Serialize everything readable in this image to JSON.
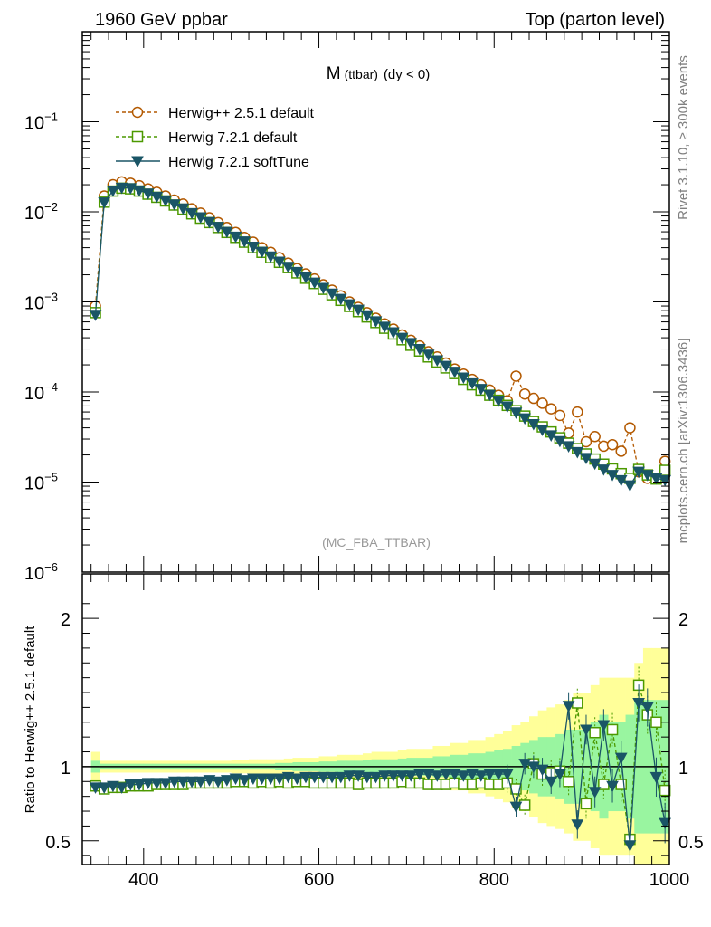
{
  "header": {
    "left": "1960 GeV ppbar",
    "right": "Top (parton level)"
  },
  "side_labels": {
    "rivet": "Rivet 3.1.10, ≥ 300k events",
    "mcplots": "mcplots.cern.ch [arXiv:1306.3436]"
  },
  "chart_data": [
    {
      "type": "line",
      "title": "M",
      "title_sub": "(ttbar)",
      "title_suffix": "(dy < 0)",
      "analysis_label": "(MC_FBA_TTBAR)",
      "xlim": [
        330,
        1000
      ],
      "ylim": [
        1e-06,
        1
      ],
      "log_y": true,
      "y_tick_labels": [
        {
          "base": "10",
          "exp": "−1",
          "value": 0.1
        },
        {
          "base": "10",
          "exp": "−2",
          "value": 0.01
        },
        {
          "base": "10",
          "exp": "−3",
          "value": 0.001
        },
        {
          "base": "10",
          "exp": "−4",
          "value": 0.0001
        },
        {
          "base": "10",
          "exp": "−5",
          "value": 1e-05
        },
        {
          "base": "10",
          "exp": "−6",
          "value": 1e-06
        }
      ],
      "legend_placement": "top-left",
      "series": [
        {
          "name": "Herwig++ 2.5.1 default",
          "color": "#b35900",
          "marker": "open-circle",
          "line": "dashed"
        },
        {
          "name": "Herwig 7.2.1 default",
          "color": "#4c9900",
          "marker": "open-square",
          "line": "dashed"
        },
        {
          "name": "Herwig 7.2.1 softTune",
          "color": "#1a5566",
          "marker": "filled-triangle-down",
          "line": "solid"
        }
      ],
      "x": [
        345,
        355,
        365,
        375,
        385,
        395,
        405,
        415,
        425,
        435,
        445,
        455,
        465,
        475,
        485,
        495,
        505,
        515,
        525,
        535,
        545,
        555,
        565,
        575,
        585,
        595,
        605,
        615,
        625,
        635,
        645,
        655,
        665,
        675,
        685,
        695,
        705,
        715,
        725,
        735,
        745,
        755,
        765,
        775,
        785,
        795,
        805,
        815,
        825,
        835,
        845,
        855,
        865,
        875,
        885,
        895,
        905,
        915,
        925,
        935,
        945,
        955,
        965,
        975,
        985,
        995
      ],
      "values_herwigpp": [
        0.0009,
        0.015,
        0.02,
        0.0215,
        0.0208,
        0.0195,
        0.018,
        0.0165,
        0.015,
        0.0135,
        0.0122,
        0.0108,
        0.0097,
        0.0086,
        0.0076,
        0.0067,
        0.0059,
        0.0052,
        0.0046,
        0.004,
        0.00355,
        0.0031,
        0.0027,
        0.00235,
        0.00205,
        0.0018,
        0.00155,
        0.00135,
        0.00117,
        0.001,
        0.00087,
        0.00076,
        0.00066,
        0.00057,
        0.0005,
        0.00043,
        0.000375,
        0.000325,
        0.00028,
        0.000245,
        0.00021,
        0.00018,
        0.000158,
        0.000138,
        0.00012,
        0.000105,
        9.2e-05,
        8e-05,
        0.00015,
        9.5e-05,
        8.5e-05,
        7.5e-05,
        6.5e-05,
        5.5e-05,
        3.5e-05,
        6e-05,
        2.8e-05,
        3.2e-05,
        2.5e-05,
        2.6e-05,
        2.2e-05,
        4e-05,
        1.3e-05,
        1.1e-05,
        1.1e-05,
        1.7e-05
      ],
      "values_h7default": [
        0.00076,
        0.0128,
        0.017,
        0.0183,
        0.018,
        0.017,
        0.0157,
        0.0145,
        0.0132,
        0.0119,
        0.0107,
        0.0095,
        0.0085,
        0.0076,
        0.0067,
        0.0059,
        0.0052,
        0.0046,
        0.004,
        0.00355,
        0.0031,
        0.00275,
        0.0024,
        0.0021,
        0.00183,
        0.0016,
        0.00138,
        0.0012,
        0.00104,
        0.00089,
        0.00078,
        0.00068,
        0.00059,
        0.00051,
        0.00044,
        0.00038,
        0.00033,
        0.000285,
        0.000245,
        0.000215,
        0.000185,
        0.00016,
        0.000138,
        0.00012,
        0.000105,
        9.2e-05,
        8.1e-05,
        7.1e-05,
        6.2e-05,
        5.4e-05,
        4.7e-05,
        4.1e-05,
        3.6e-05,
        3.1e-05,
        2.7e-05,
        2.35e-05,
        2.05e-05,
        1.8e-05,
        1.58e-05,
        1.4e-05,
        1.24e-05,
        1.1e-05,
        1.38e-05,
        1.2e-05,
        1.08e-05,
        1.35e-05
      ],
      "values_h7soft": [
        0.00072,
        0.0127,
        0.0172,
        0.0185,
        0.0183,
        0.0173,
        0.016,
        0.0147,
        0.0134,
        0.0121,
        0.0109,
        0.0097,
        0.0087,
        0.0077,
        0.0068,
        0.006,
        0.0053,
        0.0047,
        0.0041,
        0.0036,
        0.0032,
        0.0028,
        0.00245,
        0.00215,
        0.00188,
        0.00164,
        0.00143,
        0.00124,
        0.00108,
        0.00094,
        0.00082,
        0.00071,
        0.00061,
        0.00053,
        0.00046,
        0.0004,
        0.00035,
        0.0003,
        0.00026,
        0.000225,
        0.000195,
        0.000168,
        0.000145,
        0.000125,
        0.000108,
        9.3e-05,
        8e-05,
        6.9e-05,
        5.9e-05,
        5.1e-05,
        4.4e-05,
        3.8e-05,
        3.3e-05,
        2.85e-05,
        2.5e-05,
        2.15e-05,
        1.85e-05,
        1.6e-05,
        1.38e-05,
        1.2e-05,
        1.05e-05,
        9.2e-06,
        1.3e-05,
        1.2e-05,
        1.1e-05,
        1.05e-05
      ]
    },
    {
      "type": "line",
      "ylabel": "Ratio to Herwig++ 2.5.1 default",
      "xlim": [
        330,
        1000
      ],
      "ylim": [
        0.34,
        2.3
      ],
      "x_tick_labels": [
        "400",
        "600",
        "800",
        "1000"
      ],
      "x_ticks": [
        400,
        600,
        800,
        1000
      ],
      "y_tick_labels": [
        "2",
        "1",
        "0.5"
      ],
      "y_ticks": [
        2,
        1,
        0.5
      ],
      "reference_line": 1,
      "band_inner_color": "#99f5a0",
      "band_outer_color": "#ffff99",
      "band_halfwidth_inner": [
        0.04,
        0.02,
        0.02,
        0.02,
        0.02,
        0.02,
        0.02,
        0.02,
        0.02,
        0.02,
        0.02,
        0.02,
        0.02,
        0.02,
        0.02,
        0.02,
        0.02,
        0.02,
        0.02,
        0.02,
        0.02,
        0.025,
        0.025,
        0.03,
        0.03,
        0.03,
        0.035,
        0.035,
        0.04,
        0.04,
        0.04,
        0.045,
        0.05,
        0.05,
        0.05,
        0.055,
        0.06,
        0.06,
        0.06,
        0.07,
        0.07,
        0.08,
        0.08,
        0.09,
        0.09,
        0.1,
        0.11,
        0.12,
        0.14,
        0.16,
        0.18,
        0.2,
        0.2,
        0.22,
        0.25,
        0.25,
        0.25,
        0.3,
        0.35,
        0.3,
        0.3,
        0.35,
        0.45,
        0.45,
        0.45,
        0.45
      ],
      "band_halfwidth_outer": [
        0.1,
        0.04,
        0.04,
        0.04,
        0.04,
        0.04,
        0.04,
        0.04,
        0.04,
        0.04,
        0.04,
        0.04,
        0.04,
        0.04,
        0.04,
        0.04,
        0.045,
        0.045,
        0.05,
        0.05,
        0.05,
        0.05,
        0.055,
        0.06,
        0.06,
        0.06,
        0.07,
        0.07,
        0.08,
        0.08,
        0.08,
        0.09,
        0.1,
        0.1,
        0.1,
        0.11,
        0.12,
        0.12,
        0.12,
        0.14,
        0.14,
        0.16,
        0.16,
        0.18,
        0.18,
        0.2,
        0.22,
        0.24,
        0.28,
        0.3,
        0.34,
        0.38,
        0.4,
        0.42,
        0.45,
        0.5,
        0.5,
        0.55,
        0.6,
        0.6,
        0.6,
        0.6,
        0.7,
        0.8,
        0.8,
        0.8
      ],
      "ratio_h7default": [
        0.87,
        0.85,
        0.86,
        0.86,
        0.87,
        0.87,
        0.87,
        0.88,
        0.88,
        0.88,
        0.88,
        0.89,
        0.89,
        0.89,
        0.89,
        0.89,
        0.9,
        0.9,
        0.89,
        0.9,
        0.89,
        0.9,
        0.89,
        0.9,
        0.9,
        0.89,
        0.89,
        0.89,
        0.89,
        0.89,
        0.88,
        0.89,
        0.89,
        0.89,
        0.89,
        0.9,
        0.89,
        0.89,
        0.88,
        0.88,
        0.88,
        0.89,
        0.88,
        0.88,
        0.89,
        0.88,
        0.88,
        0.89,
        0.85,
        0.74,
        1.02,
        0.95,
        0.96,
        0.97,
        0.9,
        1.43,
        0.75,
        1.23,
        0.88,
        1.25,
        0.88,
        0.51,
        1.55,
        1.35,
        1.3,
        0.84
      ],
      "ratio_h7soft": [
        0.86,
        0.86,
        0.87,
        0.86,
        0.88,
        0.88,
        0.89,
        0.89,
        0.89,
        0.9,
        0.9,
        0.9,
        0.9,
        0.91,
        0.9,
        0.91,
        0.92,
        0.91,
        0.92,
        0.92,
        0.92,
        0.92,
        0.93,
        0.92,
        0.93,
        0.93,
        0.93,
        0.93,
        0.93,
        0.94,
        0.94,
        0.93,
        0.93,
        0.94,
        0.94,
        0.94,
        0.94,
        0.95,
        0.95,
        0.94,
        0.95,
        0.95,
        0.94,
        0.95,
        0.94,
        0.95,
        0.95,
        0.95,
        0.73,
        1.02,
        1.0,
        0.98,
        0.9,
        0.95,
        1.41,
        0.61,
        1.25,
        0.83,
        1.28,
        0.87,
        1.06,
        0.47,
        1.43,
        1.4,
        0.93,
        0.62
      ]
    }
  ]
}
